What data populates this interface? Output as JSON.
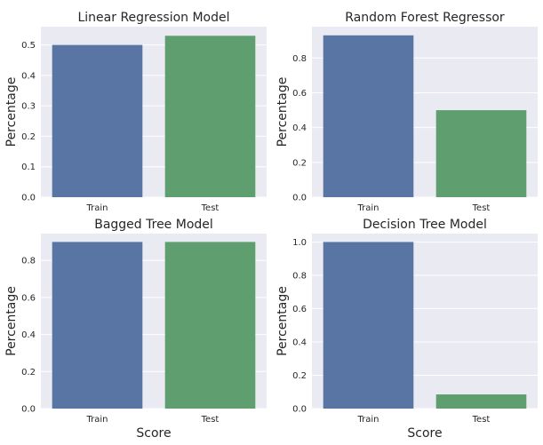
{
  "colors": {
    "panel_bg": "#eaeaf2",
    "grid": "#ffffff",
    "train": "#5875a4",
    "test": "#5f9e6e"
  },
  "chart_data": [
    {
      "type": "bar",
      "title": "Linear Regression Model",
      "xlabel": "",
      "ylabel": "Percentage",
      "categories": [
        "Train",
        "Test"
      ],
      "values": [
        0.5,
        0.53
      ],
      "ylim": [
        0,
        0.56
      ],
      "yticks": [
        "0.0",
        "0.1",
        "0.2",
        "0.3",
        "0.4",
        "0.5"
      ],
      "grid": true
    },
    {
      "type": "bar",
      "title": "Random Forest Regressor",
      "xlabel": "",
      "ylabel": "Percentage",
      "categories": [
        "Train",
        "Test"
      ],
      "values": [
        0.93,
        0.5
      ],
      "ylim": [
        0,
        0.98
      ],
      "yticks": [
        "0.0",
        "0.2",
        "0.4",
        "0.6",
        "0.8"
      ],
      "grid": true
    },
    {
      "type": "bar",
      "title": "Bagged Tree Model",
      "xlabel": "Score",
      "ylabel": "Percentage",
      "categories": [
        "Train",
        "Test"
      ],
      "values": [
        0.9,
        0.9
      ],
      "ylim": [
        0,
        0.945
      ],
      "yticks": [
        "0.0",
        "0.2",
        "0.4",
        "0.6",
        "0.8"
      ],
      "grid": true
    },
    {
      "type": "bar",
      "title": "Decision Tree Model",
      "xlabel": "Score",
      "ylabel": "Percentage",
      "categories": [
        "Train",
        "Test"
      ],
      "values": [
        1.0,
        0.085
      ],
      "ylim": [
        0,
        1.05
      ],
      "yticks": [
        "0.0",
        "0.2",
        "0.4",
        "0.6",
        "0.8",
        "1.0"
      ],
      "grid": true
    }
  ]
}
